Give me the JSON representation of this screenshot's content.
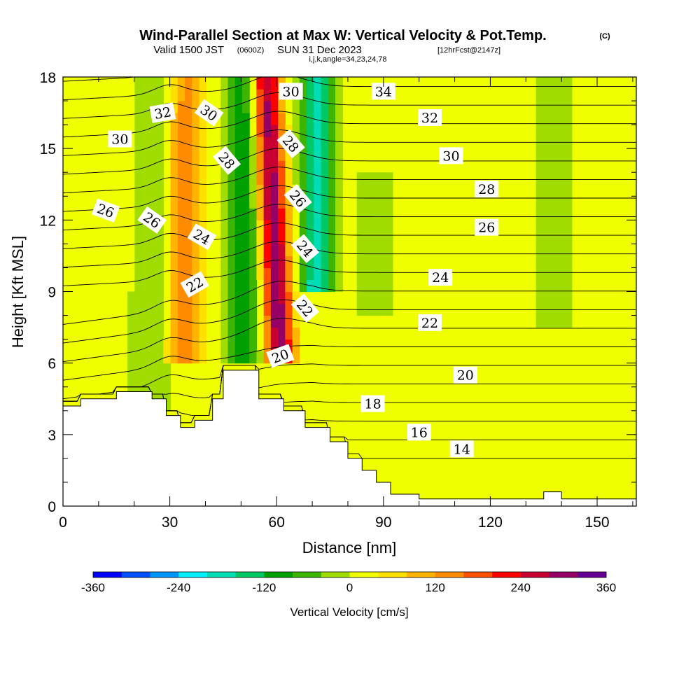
{
  "header": {
    "title": "Wind-Parallel Section at Max W: Vertical Velocity & Pot.Temp.",
    "copyright": "(C)",
    "valid_prefix": "Valid 1500 JST",
    "zulu": "(0600Z)",
    "valid_date": "SUN 31 Dec 2023",
    "forecast": "[12hrFcst@2147z]",
    "indices": "i,j,k,angle=34,23,24,78"
  },
  "chart_data": {
    "type": "heatmap",
    "title": "Wind-Parallel Section at Max W: Vertical Velocity & Pot.Temp.",
    "xlabel": "Distance [nm]",
    "ylabel": "Height [Kft MSL]",
    "xlim": [
      0,
      161
    ],
    "ylim": [
      0,
      18
    ],
    "x_ticks": [
      0,
      30,
      60,
      90,
      120,
      150
    ],
    "y_ticks": [
      0,
      3,
      6,
      9,
      12,
      15,
      18
    ],
    "colorbar": {
      "title": "Vertical Velocity [cm/s]",
      "tick_values": [
        -360,
        -240,
        -120,
        0,
        120,
        240,
        360
      ],
      "tick_labels": [
        "-360",
        "-240",
        "-120",
        "0",
        "120",
        "240",
        "360"
      ],
      "colors": [
        "#0000ff",
        "#0050ff",
        "#0096ff",
        "#00f0ff",
        "#00dcb4",
        "#00c864",
        "#00a000",
        "#3cb400",
        "#a0dc00",
        "#f0ff00",
        "#ffe100",
        "#ffb400",
        "#ff8c00",
        "#ff5000",
        "#ff0000",
        "#c80032",
        "#960064",
        "#640096"
      ]
    },
    "terrain": [
      [
        0,
        4.2
      ],
      [
        5,
        4.5
      ],
      [
        15,
        4.8
      ],
      [
        25,
        4.5
      ],
      [
        29,
        3.8
      ],
      [
        33,
        3.3
      ],
      [
        37,
        3.6
      ],
      [
        42,
        4.5
      ],
      [
        45,
        5.7
      ],
      [
        51,
        5.7
      ],
      [
        55,
        4.5
      ],
      [
        62,
        4.0
      ],
      [
        68,
        3.3
      ],
      [
        75,
        2.7
      ],
      [
        80,
        2.0
      ],
      [
        84,
        1.5
      ],
      [
        88,
        1.0
      ],
      [
        92,
        0.5
      ],
      [
        100,
        0.3
      ],
      [
        130,
        0.3
      ],
      [
        135,
        0.6
      ],
      [
        140,
        0.3
      ],
      [
        161,
        0.3
      ]
    ],
    "velocity_features": [
      {
        "x": 60,
        "z_bottom": 6.0,
        "z_top": 18,
        "w": 300
      },
      {
        "x": 51,
        "z_bottom": 6.0,
        "z_top": 18,
        "w": -120
      },
      {
        "x": 71,
        "z_bottom": 9.0,
        "z_top": 18,
        "w": -200
      },
      {
        "x": 34,
        "z_bottom": 6.0,
        "z_top": 18,
        "w": 120
      },
      {
        "x": 25,
        "z_bottom": 4.0,
        "z_top": 18,
        "w": -40
      },
      {
        "x": 88,
        "z_bottom": 8.0,
        "z_top": 14,
        "w": -30
      },
      {
        "x": 138,
        "z_bottom": 7.5,
        "z_top": 18,
        "w": -30
      }
    ],
    "contour_labels": [
      {
        "value": "34",
        "x": 90,
        "y": 17.4,
        "angle": 0
      },
      {
        "value": "30",
        "x": 64,
        "y": 17.4,
        "angle": 0
      },
      {
        "value": "32",
        "x": 28,
        "y": 16.5,
        "angle": -10
      },
      {
        "value": "30",
        "x": 41,
        "y": 16.5,
        "angle": 35
      },
      {
        "value": "30",
        "x": 16,
        "y": 15.4,
        "angle": 0
      },
      {
        "value": "32",
        "x": 103,
        "y": 16.3,
        "angle": 0
      },
      {
        "value": "28",
        "x": 64,
        "y": 15.2,
        "angle": 50
      },
      {
        "value": "30",
        "x": 109,
        "y": 14.7,
        "angle": 0
      },
      {
        "value": "28",
        "x": 46,
        "y": 14.5,
        "angle": 50
      },
      {
        "value": "28",
        "x": 119,
        "y": 13.3,
        "angle": 0
      },
      {
        "value": "26",
        "x": 66,
        "y": 12.9,
        "angle": 50
      },
      {
        "value": "26",
        "x": 12,
        "y": 12.4,
        "angle": 20
      },
      {
        "value": "26",
        "x": 25,
        "y": 12.0,
        "angle": 35
      },
      {
        "value": "26",
        "x": 119,
        "y": 11.7,
        "angle": 0
      },
      {
        "value": "24",
        "x": 39,
        "y": 11.3,
        "angle": 30
      },
      {
        "value": "24",
        "x": 68,
        "y": 10.8,
        "angle": 50
      },
      {
        "value": "24",
        "x": 106,
        "y": 9.6,
        "angle": 0
      },
      {
        "value": "22",
        "x": 37,
        "y": 9.3,
        "angle": -30
      },
      {
        "value": "22",
        "x": 68,
        "y": 8.3,
        "angle": 50
      },
      {
        "value": "22",
        "x": 103,
        "y": 7.7,
        "angle": 0
      },
      {
        "value": "20",
        "x": 61,
        "y": 6.3,
        "angle": -20
      },
      {
        "value": "20",
        "x": 113,
        "y": 5.5,
        "angle": 0
      },
      {
        "value": "18",
        "x": 87,
        "y": 4.3,
        "angle": 0
      },
      {
        "value": "16",
        "x": 100,
        "y": 3.1,
        "angle": 0
      },
      {
        "value": "14",
        "x": 112,
        "y": 2.4,
        "angle": 0
      }
    ]
  }
}
